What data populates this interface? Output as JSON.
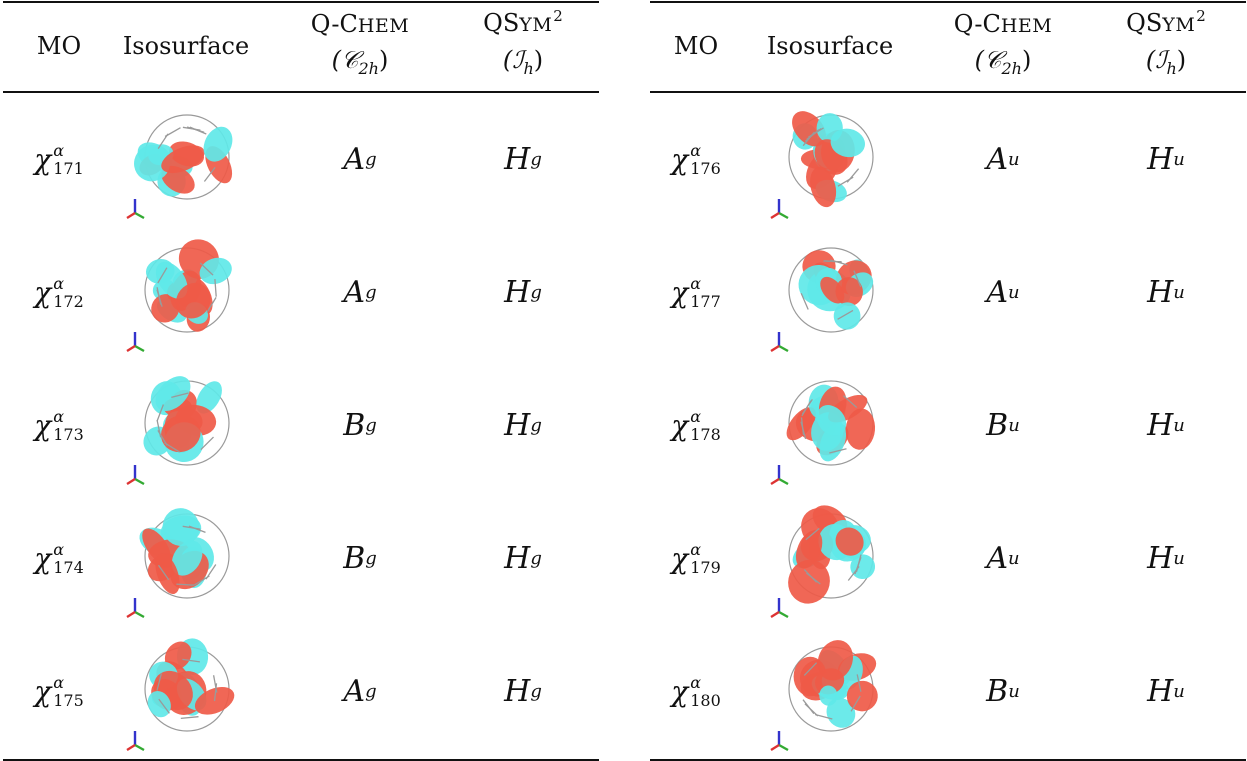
{
  "headers": {
    "mo": "MO",
    "isosurface": "Isosurface",
    "qchem_prefix": "Q-C",
    "qchem_rest": "HEM",
    "qchem_group": "(𝒞",
    "qchem_group_sub": "2h",
    "qsym_prefix": "QS",
    "qsym_rest": "YM",
    "qsym_sup": "2",
    "qsym_group": "(ℐ",
    "qsym_group_sub": "h"
  },
  "left_rows": [
    {
      "mo_symbol": "χ",
      "mo_sup": "α",
      "mo_sub": "171",
      "qchem": "A",
      "qchem_sub": "g",
      "qsym": "H",
      "qsym_sub": "g",
      "variant": 1
    },
    {
      "mo_symbol": "χ",
      "mo_sup": "α",
      "mo_sub": "172",
      "qchem": "A",
      "qchem_sub": "g",
      "qsym": "H",
      "qsym_sub": "g",
      "variant": 2
    },
    {
      "mo_symbol": "χ",
      "mo_sup": "α",
      "mo_sub": "173",
      "qchem": "B",
      "qchem_sub": "g",
      "qsym": "H",
      "qsym_sub": "g",
      "variant": 3
    },
    {
      "mo_symbol": "χ",
      "mo_sup": "α",
      "mo_sub": "174",
      "qchem": "B",
      "qchem_sub": "g",
      "qsym": "H",
      "qsym_sub": "g",
      "variant": 4
    },
    {
      "mo_symbol": "χ",
      "mo_sup": "α",
      "mo_sub": "175",
      "qchem": "A",
      "qchem_sub": "g",
      "qsym": "H",
      "qsym_sub": "g",
      "variant": 5
    }
  ],
  "right_rows": [
    {
      "mo_symbol": "χ",
      "mo_sup": "α",
      "mo_sub": "176",
      "qchem": "A",
      "qchem_sub": "u",
      "qsym": "H",
      "qsym_sub": "u",
      "variant": 6
    },
    {
      "mo_symbol": "χ",
      "mo_sup": "α",
      "mo_sub": "177",
      "qchem": "A",
      "qchem_sub": "u",
      "qsym": "H",
      "qsym_sub": "u",
      "variant": 7
    },
    {
      "mo_symbol": "χ",
      "mo_sup": "α",
      "mo_sub": "178",
      "qchem": "B",
      "qchem_sub": "u",
      "qsym": "H",
      "qsym_sub": "u",
      "variant": 8
    },
    {
      "mo_symbol": "χ",
      "mo_sup": "α",
      "mo_sub": "179",
      "qchem": "A",
      "qchem_sub": "u",
      "qsym": "H",
      "qsym_sub": "u",
      "variant": 9
    },
    {
      "mo_symbol": "χ",
      "mo_sup": "α",
      "mo_sub": "180",
      "qchem": "B",
      "qchem_sub": "u",
      "qsym": "H",
      "qsym_sub": "u",
      "variant": 10
    }
  ],
  "colors": {
    "lobe_positive": "#ef5a48",
    "lobe_negative": "#5fe8e8",
    "bond": "#9a9a9a",
    "axis_x": "#d33",
    "axis_y": "#3a3",
    "axis_z": "#33c"
  }
}
